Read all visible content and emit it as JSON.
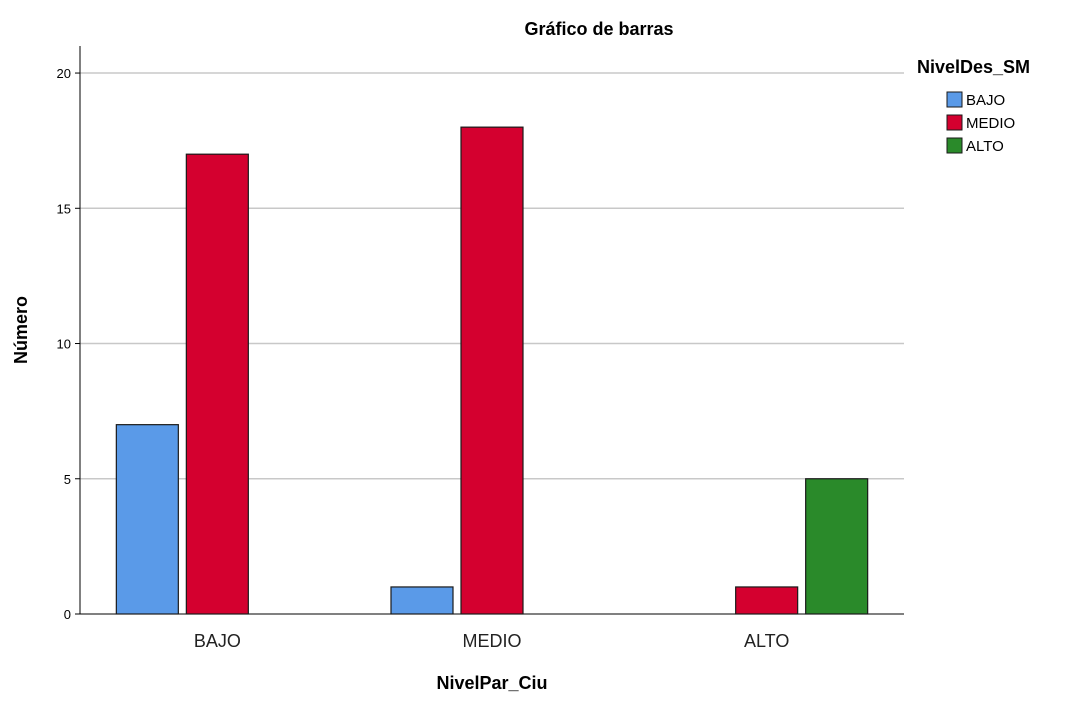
{
  "chart_data": {
    "type": "bar",
    "title": "Gráfico de barras",
    "xlabel": "NivelPar_Ciu",
    "ylabel": "Número",
    "categories": [
      "BAJO",
      "MEDIO",
      "ALTO"
    ],
    "series": [
      {
        "name": "BAJO",
        "values": [
          7,
          1,
          0
        ],
        "color": "#5a9ae8"
      },
      {
        "name": "MEDIO",
        "values": [
          17,
          18,
          1
        ],
        "color": "#d4002f"
      },
      {
        "name": "ALTO",
        "values": [
          0,
          0,
          5
        ],
        "color": "#2a8a2a"
      }
    ],
    "ylim": [
      0,
      21
    ],
    "yticks": [
      0,
      5,
      10,
      15,
      20
    ],
    "grid": true,
    "legend": {
      "title": "NivelDes_SM",
      "position": "top-right"
    }
  }
}
